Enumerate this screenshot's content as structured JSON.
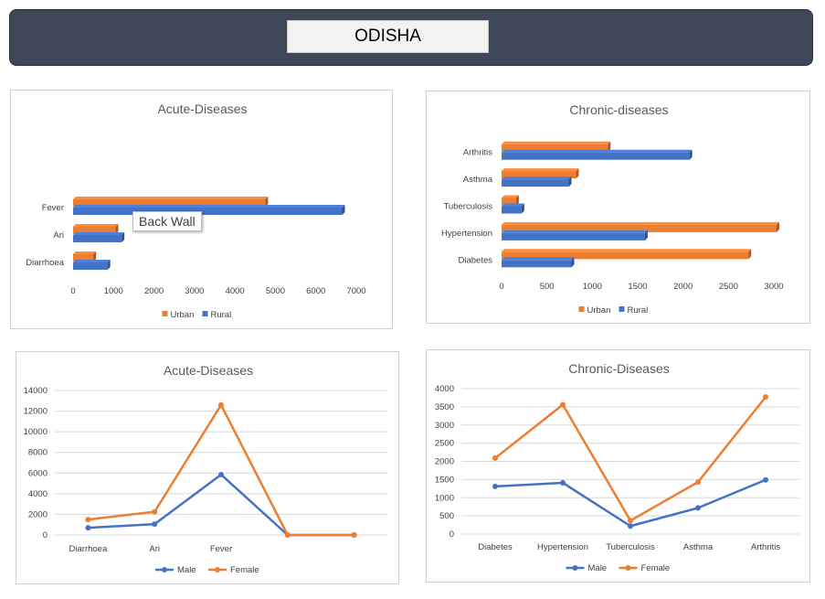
{
  "header": {
    "title": "ODISHA"
  },
  "colors": {
    "urban": "#ed7d31",
    "rural": "#4472c4",
    "male": "#4472c4",
    "female": "#ed7d31"
  },
  "tooltip": {
    "text": "Back Wall"
  },
  "chart_data": [
    {
      "type": "bar",
      "orientation": "horizontal",
      "title": "Acute-Diseases",
      "categories": [
        "Fever",
        "Ari",
        "Diarrhoea"
      ],
      "series": [
        {
          "name": "Urban",
          "values": [
            4750,
            1050,
            500
          ]
        },
        {
          "name": "Rural",
          "values": [
            6650,
            1200,
            850
          ]
        }
      ],
      "xlim": [
        0,
        7000
      ],
      "xticks": [
        0,
        1000,
        2000,
        3000,
        4000,
        5000,
        6000,
        7000
      ],
      "legend": "bottom"
    },
    {
      "type": "bar",
      "orientation": "horizontal",
      "title": "Chronic-diseases",
      "categories": [
        "Arthritis",
        "Asthma",
        "Tuberculosis",
        "Hypertension",
        "Diabetes"
      ],
      "series": [
        {
          "name": "Urban",
          "values": [
            1170,
            820,
            160,
            3030,
            2720
          ]
        },
        {
          "name": "Rural",
          "values": [
            2070,
            740,
            220,
            1580,
            770
          ]
        }
      ],
      "xlim": [
        0,
        3000
      ],
      "xticks": [
        0,
        500,
        1000,
        1500,
        2000,
        2500,
        3000
      ],
      "legend": "bottom"
    },
    {
      "type": "line",
      "title": "Acute-Diseases",
      "categories": [
        "Diarrhoea",
        "Ari",
        "Fever",
        "",
        ""
      ],
      "series": [
        {
          "name": "Male",
          "values": [
            700,
            1050,
            5850,
            0,
            0
          ]
        },
        {
          "name": "Female",
          "values": [
            1500,
            2250,
            12600,
            0,
            0
          ]
        }
      ],
      "ylim": [
        0,
        14000
      ],
      "yticks": [
        0,
        2000,
        4000,
        6000,
        8000,
        10000,
        12000,
        14000
      ],
      "grid": true,
      "legend": "bottom"
    },
    {
      "type": "line",
      "title": "Chronic-Diseases",
      "categories": [
        "Diabetes",
        "Hypertension",
        "Tuberculosis",
        "Asthma",
        "Arthritis"
      ],
      "series": [
        {
          "name": "Male",
          "values": [
            1310,
            1410,
            220,
            720,
            1490
          ]
        },
        {
          "name": "Female",
          "values": [
            2090,
            3560,
            370,
            1430,
            3770
          ]
        }
      ],
      "ylim": [
        0,
        4000
      ],
      "yticks": [
        0,
        500,
        1000,
        1500,
        2000,
        2500,
        3000,
        3500,
        4000
      ],
      "grid": true,
      "legend": "bottom"
    }
  ]
}
